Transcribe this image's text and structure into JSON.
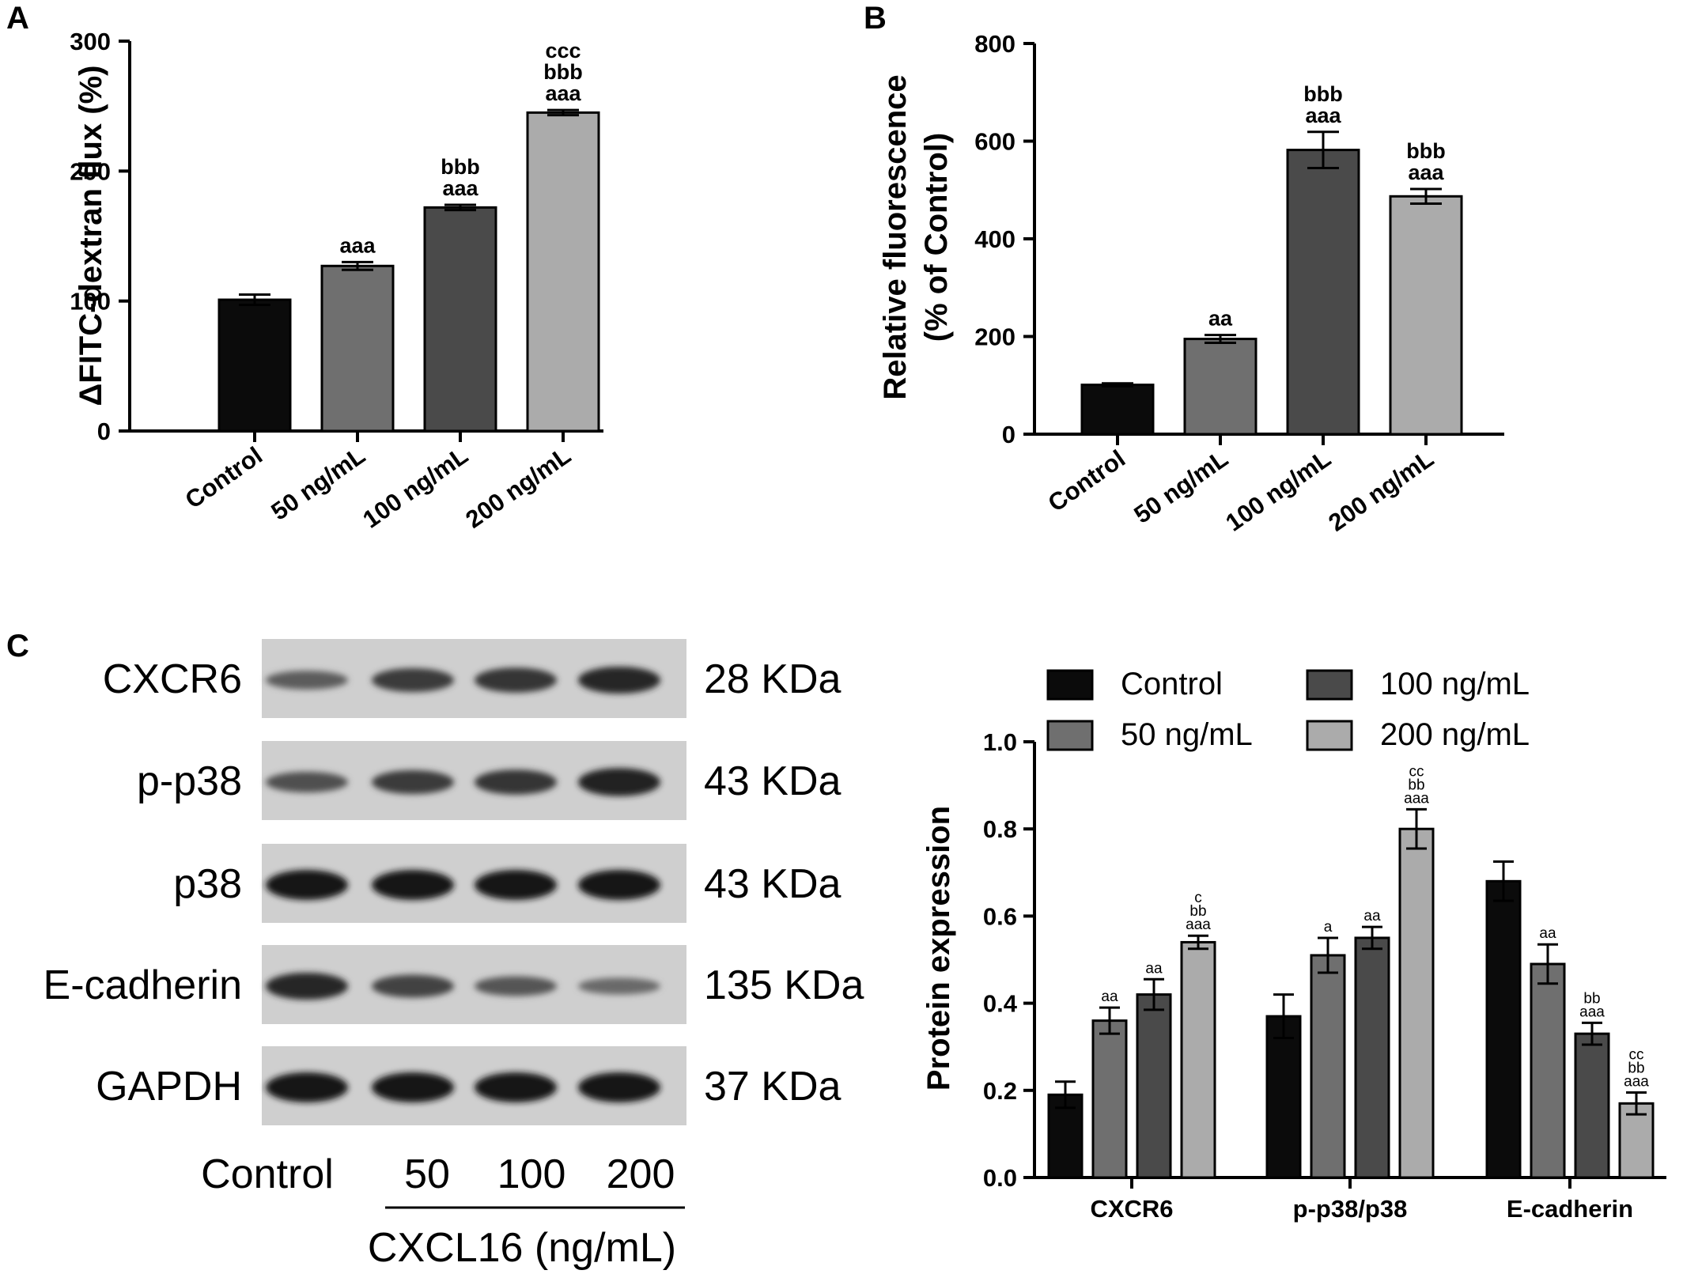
{
  "panels": {
    "A": {
      "letter": "A"
    },
    "B": {
      "letter": "B"
    },
    "C": {
      "letter": "C"
    }
  },
  "chart_data": [
    {
      "id": "A",
      "type": "bar",
      "ylabel": "ΔFITC-dextran flux (%)",
      "categories": [
        "Control",
        "50 ng/mL",
        "100 ng/mL",
        "200 ng/mL"
      ],
      "values": [
        101,
        127,
        172,
        245
      ],
      "errors": [
        4,
        3,
        2,
        2
      ],
      "annotations": [
        [],
        [
          "aaa"
        ],
        [
          "bbb",
          "aaa"
        ],
        [
          "ccc",
          "bbb",
          "aaa"
        ]
      ],
      "ylim": [
        0,
        300
      ],
      "yticks": [
        0,
        100,
        200,
        300
      ],
      "colors": [
        "#0b0b0b",
        "#6f6f6f",
        "#4a4a4a",
        "#ababab"
      ]
    },
    {
      "id": "B",
      "type": "bar",
      "ylabel_lines": [
        "Relative fluorescence",
        "(% of Control)"
      ],
      "categories": [
        "Control",
        "50 ng/mL",
        "100 ng/mL",
        "200 ng/mL"
      ],
      "values": [
        101,
        195,
        582,
        487
      ],
      "errors": [
        3,
        8,
        37,
        15
      ],
      "annotations": [
        [],
        [
          "aa"
        ],
        [
          "bbb",
          "aaa"
        ],
        [
          "bbb",
          "aaa"
        ]
      ],
      "ylim": [
        0,
        800
      ],
      "yticks": [
        0,
        200,
        400,
        600,
        800
      ],
      "colors": [
        "#0b0b0b",
        "#6f6f6f",
        "#4a4a4a",
        "#ababab"
      ]
    },
    {
      "id": "C",
      "type": "bar",
      "ylabel": "Protein expression",
      "categories": [
        "CXCR6",
        "p-p38/p38",
        "E-cadherin"
      ],
      "series": [
        {
          "name": "Control",
          "color": "#0b0b0b",
          "values": [
            0.19,
            0.37,
            0.68
          ],
          "errors": [
            0.03,
            0.05,
            0.045
          ],
          "annotations": [
            [],
            [],
            []
          ]
        },
        {
          "name": "50 ng/mL",
          "color": "#6f6f6f",
          "values": [
            0.36,
            0.51,
            0.49
          ],
          "errors": [
            0.03,
            0.04,
            0.045
          ],
          "annotations": [
            [
              "aa"
            ],
            [
              "a"
            ],
            [
              "aa"
            ]
          ]
        },
        {
          "name": "100 ng/mL",
          "color": "#4a4a4a",
          "values": [
            0.42,
            0.55,
            0.33
          ],
          "errors": [
            0.035,
            0.025,
            0.025
          ],
          "annotations": [
            [
              "aa"
            ],
            [
              "aa"
            ],
            [
              "bb",
              "aaa"
            ]
          ]
        },
        {
          "name": "200 ng/mL",
          "color": "#ababab",
          "values": [
            0.54,
            0.8,
            0.17
          ],
          "errors": [
            0.015,
            0.045,
            0.025
          ],
          "annotations": [
            [
              "c",
              "bb",
              "aaa"
            ],
            [
              "cc",
              "bb",
              "aaa"
            ],
            [
              "cc",
              "bb",
              "aaa"
            ]
          ]
        }
      ],
      "ylim": [
        0,
        1.0
      ],
      "yticks": [
        "0.0",
        "0.2",
        "0.4",
        "0.6",
        "0.8",
        "1.0"
      ],
      "legend": "top"
    }
  ],
  "blot": {
    "rows": [
      {
        "protein": "CXCR6",
        "size": "28 KDa",
        "intensity": [
          0.45,
          0.7,
          0.75,
          0.85
        ]
      },
      {
        "protein": "p-p38",
        "size": "43 KDa",
        "intensity": [
          0.55,
          0.7,
          0.75,
          0.9
        ]
      },
      {
        "protein": "p38",
        "size": "43 KDa",
        "intensity": [
          1.0,
          1.0,
          1.0,
          1.0
        ]
      },
      {
        "protein": "E-cadherin",
        "size": "135 KDa",
        "intensity": [
          0.85,
          0.65,
          0.5,
          0.35
        ]
      },
      {
        "protein": "GAPDH",
        "size": "37 KDa",
        "intensity": [
          1.0,
          1.0,
          1.0,
          1.0
        ]
      }
    ],
    "lanes": [
      "Control",
      "50",
      "100",
      "200"
    ],
    "xlabel": "CXCL16 (ng/mL)"
  }
}
